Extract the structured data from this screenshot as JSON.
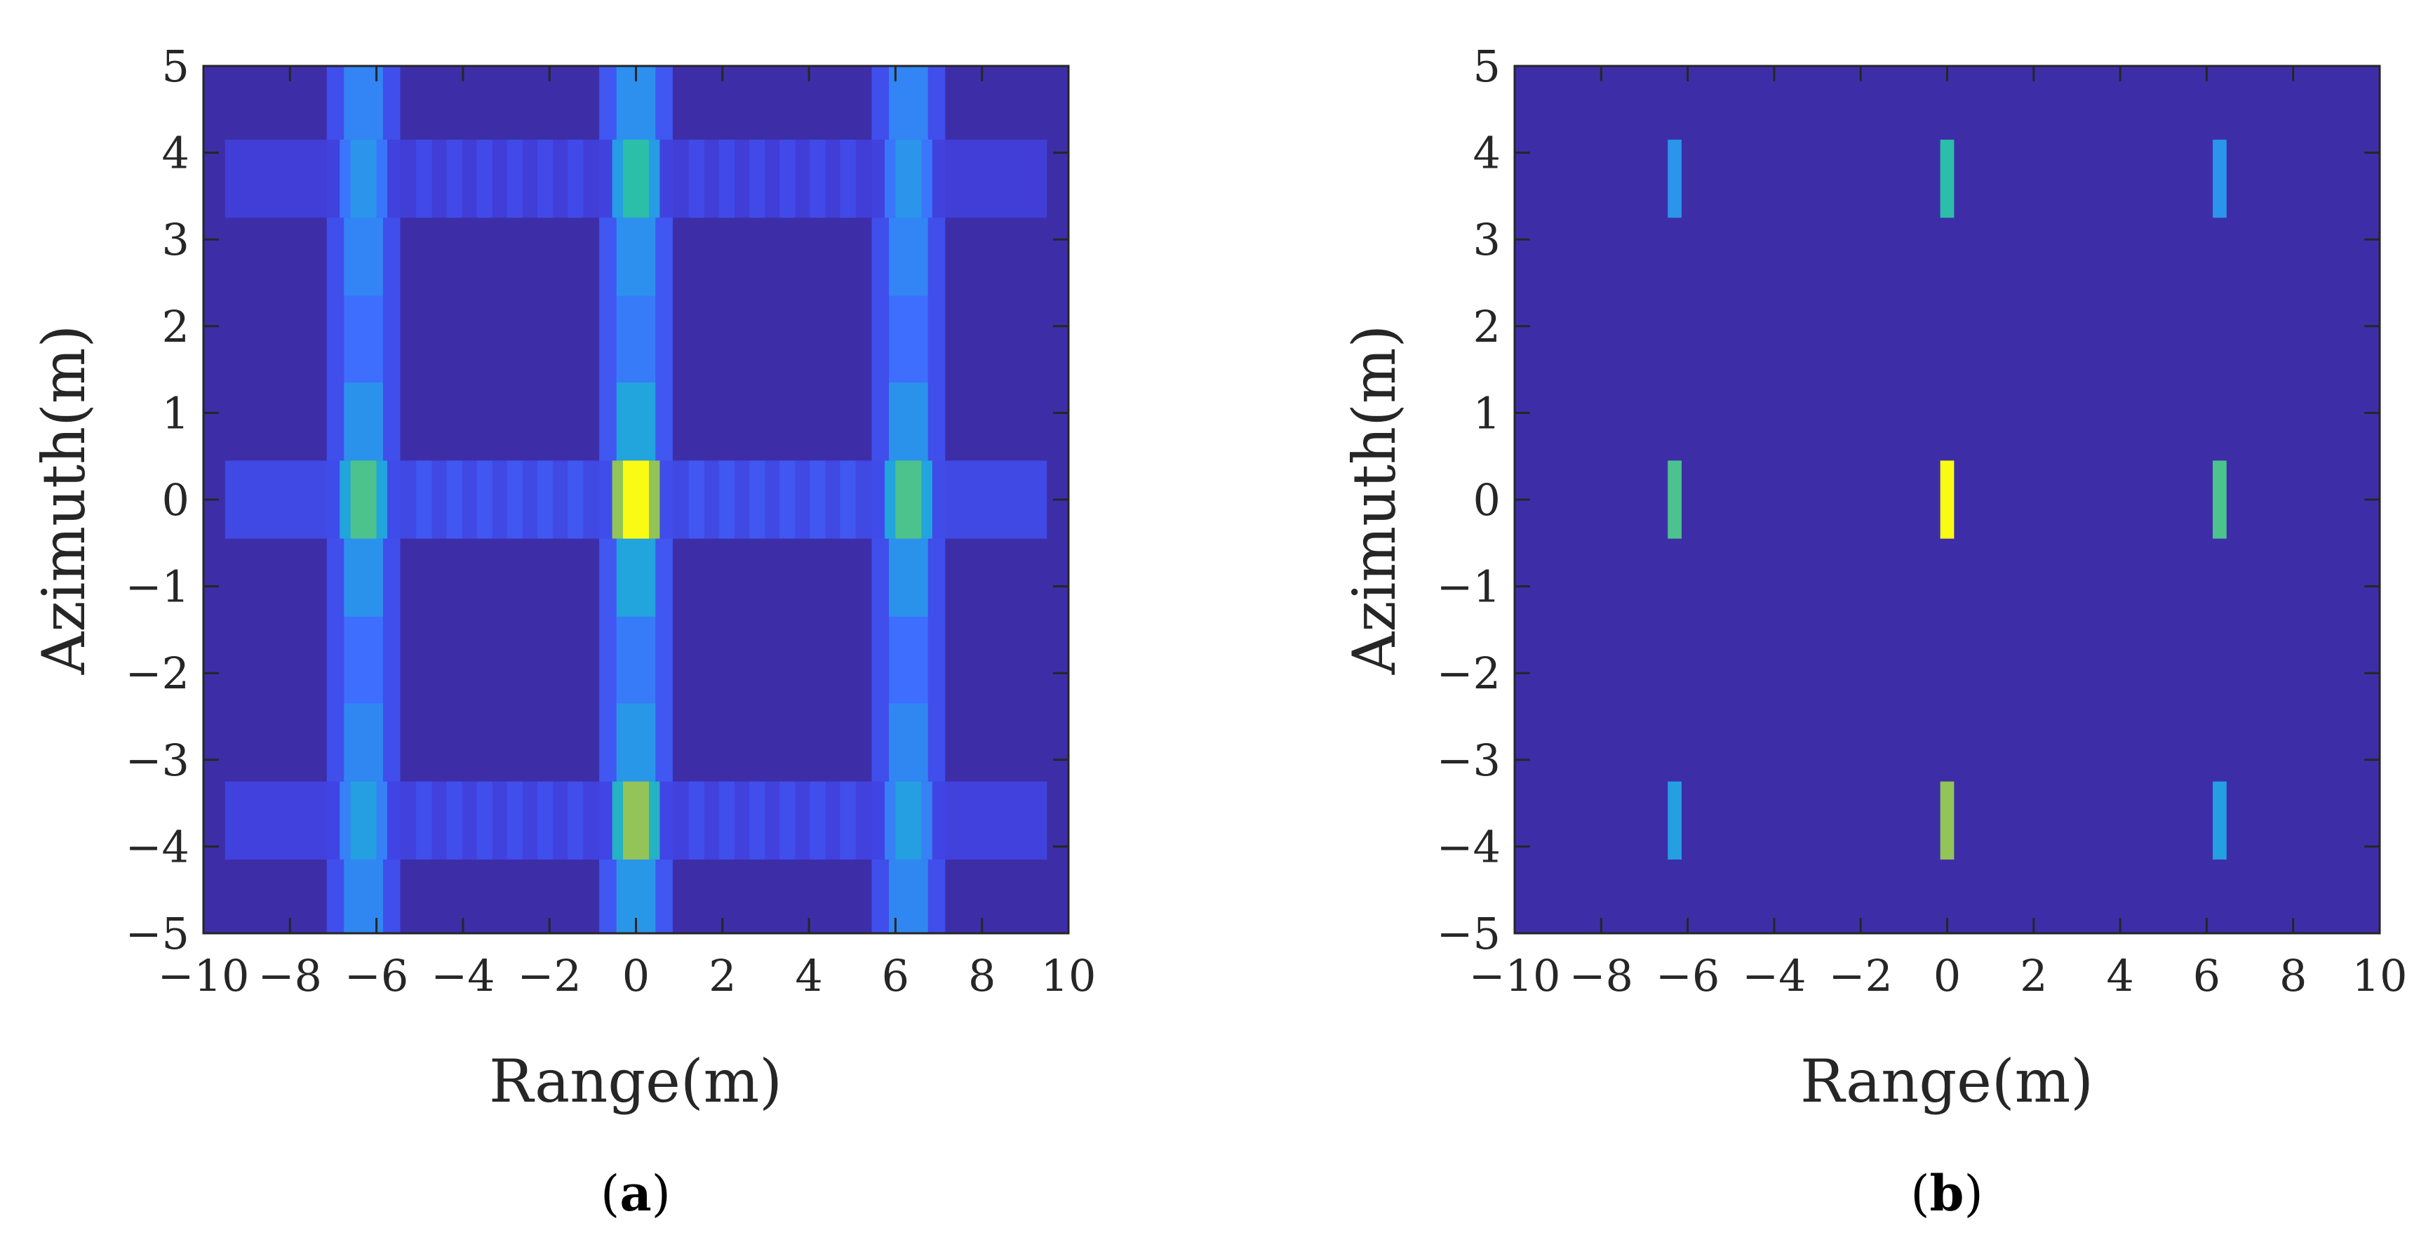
{
  "chart_data": [
    {
      "panel": "a",
      "type": "heatmap",
      "caption_letter": "a",
      "xlabel": "Range(m)",
      "ylabel": "Azimuth(m)",
      "xlim": [
        -10,
        10
      ],
      "ylim": [
        -5,
        5
      ],
      "xticks": [
        -10,
        -8,
        -6,
        -4,
        -2,
        0,
        2,
        4,
        6,
        8,
        10
      ],
      "yticks": [
        -5,
        -4,
        -3,
        -2,
        -1,
        0,
        1,
        2,
        3,
        4,
        5
      ],
      "xtick_labels": [
        "−10",
        "−8",
        "−6",
        "−4",
        "−2",
        "0",
        "2",
        "4",
        "6",
        "8",
        "10"
      ],
      "ytick_labels": [
        "−5",
        "−4",
        "−3",
        "−2",
        "−1",
        "0",
        "1",
        "2",
        "3",
        "4",
        "5"
      ],
      "background_color": "#3d2ea8",
      "targets": [
        {
          "x": -6.3,
          "y": 3.7,
          "intensity": 0.35
        },
        {
          "x": 0.0,
          "y": 3.7,
          "intensity": 0.55
        },
        {
          "x": 6.3,
          "y": 3.7,
          "intensity": 0.35
        },
        {
          "x": -6.3,
          "y": 0.0,
          "intensity": 0.6
        },
        {
          "x": 0.0,
          "y": 0.0,
          "intensity": 1.0
        },
        {
          "x": 6.3,
          "y": 0.0,
          "intensity": 0.6
        },
        {
          "x": -6.3,
          "y": -3.7,
          "intensity": 0.4
        },
        {
          "x": 0.0,
          "y": -3.7,
          "intensity": 0.7
        },
        {
          "x": 6.3,
          "y": -3.7,
          "intensity": 0.4
        }
      ],
      "sidelobes": true
    },
    {
      "panel": "b",
      "type": "heatmap",
      "caption_letter": "b",
      "xlabel": "Range(m)",
      "ylabel": "Azimuth(m)",
      "xlim": [
        -10,
        10
      ],
      "ylim": [
        -5,
        5
      ],
      "xticks": [
        -10,
        -8,
        -6,
        -4,
        -2,
        0,
        2,
        4,
        6,
        8,
        10
      ],
      "yticks": [
        -5,
        -4,
        -3,
        -2,
        -1,
        0,
        1,
        2,
        3,
        4,
        5
      ],
      "xtick_labels": [
        "−10",
        "−8",
        "−6",
        "−4",
        "−2",
        "0",
        "2",
        "4",
        "6",
        "8",
        "10"
      ],
      "ytick_labels": [
        "−5",
        "−4",
        "−3",
        "−2",
        "−1",
        "0",
        "1",
        "2",
        "3",
        "4",
        "5"
      ],
      "background_color": "#3d2ea8",
      "targets": [
        {
          "x": -6.3,
          "y": 3.7,
          "intensity": 0.35
        },
        {
          "x": 0.0,
          "y": 3.7,
          "intensity": 0.55
        },
        {
          "x": 6.3,
          "y": 3.7,
          "intensity": 0.35
        },
        {
          "x": -6.3,
          "y": 0.0,
          "intensity": 0.6
        },
        {
          "x": 0.0,
          "y": 0.0,
          "intensity": 1.0
        },
        {
          "x": 6.3,
          "y": 0.0,
          "intensity": 0.6
        },
        {
          "x": -6.3,
          "y": -3.7,
          "intensity": 0.4
        },
        {
          "x": 0.0,
          "y": -3.7,
          "intensity": 0.7
        },
        {
          "x": 6.3,
          "y": -3.7,
          "intensity": 0.4
        }
      ],
      "sidelobes": false
    }
  ],
  "colormap": [
    "#3e26a8",
    "#4145e6",
    "#3e6ffe",
    "#2c91ed",
    "#1fa9d9",
    "#2cc0a6",
    "#7cc765",
    "#c6bc37",
    "#f9d030",
    "#f9fb15"
  ]
}
